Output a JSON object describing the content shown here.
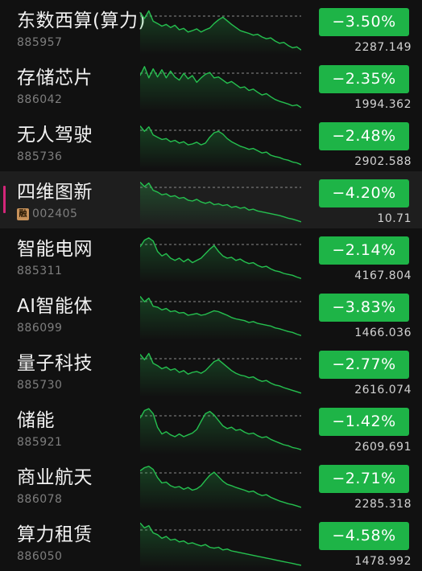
{
  "colors": {
    "down": "#1eb447",
    "line": "#25c04f",
    "ref_line": "#8a8a8a",
    "selected_marker": "#d4267a",
    "badge": "#c8925a"
  },
  "rows": [
    {
      "name": "东数西算(算力)",
      "code": "885957",
      "change": "−3.50%",
      "price": "2287.149",
      "icon": null,
      "selected": false,
      "direction": "down"
    },
    {
      "name": "存储芯片",
      "code": "886042",
      "change": "−2.35%",
      "price": "1994.362",
      "icon": null,
      "selected": false,
      "direction": "down"
    },
    {
      "name": "无人驾驶",
      "code": "885736",
      "change": "−2.48%",
      "price": "2902.588",
      "icon": null,
      "selected": false,
      "direction": "down"
    },
    {
      "name": "四维图新",
      "code": "002405",
      "change": "−4.20%",
      "price": "10.71",
      "icon": "融",
      "selected": true,
      "direction": "down"
    },
    {
      "name": "智能电网",
      "code": "885311",
      "change": "−2.14%",
      "price": "4167.804",
      "icon": null,
      "selected": false,
      "direction": "down"
    },
    {
      "name": "AI智能体",
      "code": "886099",
      "change": "−3.83%",
      "price": "1466.036",
      "icon": null,
      "selected": false,
      "direction": "down"
    },
    {
      "name": "量子科技",
      "code": "885730",
      "change": "−2.77%",
      "price": "2616.074",
      "icon": null,
      "selected": false,
      "direction": "down"
    },
    {
      "name": "储能",
      "code": "885921",
      "change": "−1.42%",
      "price": "2609.691",
      "icon": null,
      "selected": false,
      "direction": "down"
    },
    {
      "name": "商业航天",
      "code": "886078",
      "change": "−2.71%",
      "price": "2285.318",
      "icon": null,
      "selected": false,
      "direction": "down"
    },
    {
      "name": "算力租赁",
      "code": "886050",
      "change": "−4.58%",
      "price": "1478.992",
      "icon": null,
      "selected": false,
      "direction": "down"
    }
  ],
  "sparklines": [
    [
      0.12,
      0.25,
      0.08,
      0.31,
      0.36,
      0.42,
      0.38,
      0.45,
      0.4,
      0.5,
      0.47,
      0.55,
      0.52,
      0.48,
      0.55,
      0.5,
      0.46,
      0.36,
      0.28,
      0.22,
      0.3,
      0.38,
      0.45,
      0.52,
      0.55,
      0.58,
      0.62,
      0.6,
      0.66,
      0.7,
      0.68,
      0.75,
      0.8,
      0.78,
      0.85,
      0.9,
      0.88,
      0.95
    ],
    [
      0.25,
      0.05,
      0.3,
      0.1,
      0.28,
      0.12,
      0.3,
      0.15,
      0.28,
      0.35,
      0.2,
      0.32,
      0.25,
      0.4,
      0.3,
      0.22,
      0.18,
      0.3,
      0.28,
      0.35,
      0.42,
      0.38,
      0.45,
      0.52,
      0.5,
      0.58,
      0.55,
      0.62,
      0.68,
      0.65,
      0.72,
      0.78,
      0.82,
      0.85,
      0.88,
      0.92,
      0.9,
      0.96
    ],
    [
      0.1,
      0.22,
      0.12,
      0.3,
      0.35,
      0.4,
      0.38,
      0.45,
      0.42,
      0.48,
      0.45,
      0.52,
      0.5,
      0.46,
      0.52,
      0.48,
      0.35,
      0.25,
      0.22,
      0.28,
      0.38,
      0.45,
      0.5,
      0.55,
      0.58,
      0.62,
      0.6,
      0.65,
      0.7,
      0.68,
      0.75,
      0.78,
      0.8,
      0.84,
      0.86,
      0.9,
      0.92,
      0.96
    ],
    [
      0.08,
      0.18,
      0.1,
      0.26,
      0.3,
      0.36,
      0.34,
      0.4,
      0.38,
      0.44,
      0.42,
      0.48,
      0.5,
      0.46,
      0.52,
      0.55,
      0.52,
      0.58,
      0.56,
      0.6,
      0.58,
      0.64,
      0.62,
      0.66,
      0.64,
      0.7,
      0.68,
      0.72,
      0.74,
      0.76,
      0.78,
      0.8,
      0.82,
      0.85,
      0.88,
      0.9,
      0.93,
      0.96
    ],
    [
      0.25,
      0.1,
      0.05,
      0.12,
      0.35,
      0.45,
      0.4,
      0.5,
      0.55,
      0.5,
      0.58,
      0.52,
      0.6,
      0.55,
      0.5,
      0.4,
      0.3,
      0.22,
      0.35,
      0.45,
      0.5,
      0.48,
      0.55,
      0.52,
      0.58,
      0.62,
      0.6,
      0.66,
      0.7,
      0.68,
      0.74,
      0.78,
      0.8,
      0.84,
      0.86,
      0.88,
      0.92,
      0.95
    ],
    [
      0.08,
      0.2,
      0.12,
      0.3,
      0.32,
      0.38,
      0.35,
      0.42,
      0.4,
      0.45,
      0.44,
      0.5,
      0.48,
      0.46,
      0.5,
      0.48,
      0.44,
      0.4,
      0.42,
      0.46,
      0.5,
      0.55,
      0.58,
      0.6,
      0.62,
      0.66,
      0.64,
      0.68,
      0.7,
      0.72,
      0.74,
      0.78,
      0.8,
      0.83,
      0.86,
      0.88,
      0.92,
      0.95
    ],
    [
      0.1,
      0.22,
      0.08,
      0.3,
      0.35,
      0.42,
      0.38,
      0.45,
      0.42,
      0.5,
      0.46,
      0.54,
      0.5,
      0.48,
      0.52,
      0.46,
      0.36,
      0.26,
      0.22,
      0.3,
      0.38,
      0.46,
      0.52,
      0.56,
      0.58,
      0.62,
      0.6,
      0.66,
      0.7,
      0.68,
      0.74,
      0.78,
      0.8,
      0.84,
      0.87,
      0.9,
      0.93,
      0.96
    ],
    [
      0.25,
      0.08,
      0.04,
      0.15,
      0.45,
      0.6,
      0.55,
      0.62,
      0.66,
      0.6,
      0.66,
      0.62,
      0.58,
      0.5,
      0.32,
      0.15,
      0.1,
      0.18,
      0.3,
      0.42,
      0.48,
      0.45,
      0.52,
      0.5,
      0.56,
      0.6,
      0.58,
      0.64,
      0.68,
      0.66,
      0.72,
      0.76,
      0.8,
      0.84,
      0.86,
      0.9,
      0.92,
      0.95
    ],
    [
      0.15,
      0.08,
      0.05,
      0.12,
      0.3,
      0.42,
      0.4,
      0.48,
      0.52,
      0.5,
      0.56,
      0.52,
      0.58,
      0.55,
      0.48,
      0.36,
      0.25,
      0.18,
      0.28,
      0.38,
      0.45,
      0.48,
      0.52,
      0.55,
      0.58,
      0.62,
      0.6,
      0.66,
      0.7,
      0.68,
      0.74,
      0.78,
      0.82,
      0.85,
      0.88,
      0.9,
      0.93,
      0.96
    ],
    [
      0.04,
      0.15,
      0.1,
      0.26,
      0.3,
      0.38,
      0.34,
      0.42,
      0.4,
      0.46,
      0.44,
      0.5,
      0.48,
      0.52,
      0.55,
      0.52,
      0.58,
      0.6,
      0.58,
      0.64,
      0.62,
      0.66,
      0.68,
      0.7,
      0.72,
      0.74,
      0.76,
      0.78,
      0.8,
      0.82,
      0.84,
      0.86,
      0.88,
      0.9,
      0.92,
      0.94,
      0.96,
      0.98
    ]
  ]
}
